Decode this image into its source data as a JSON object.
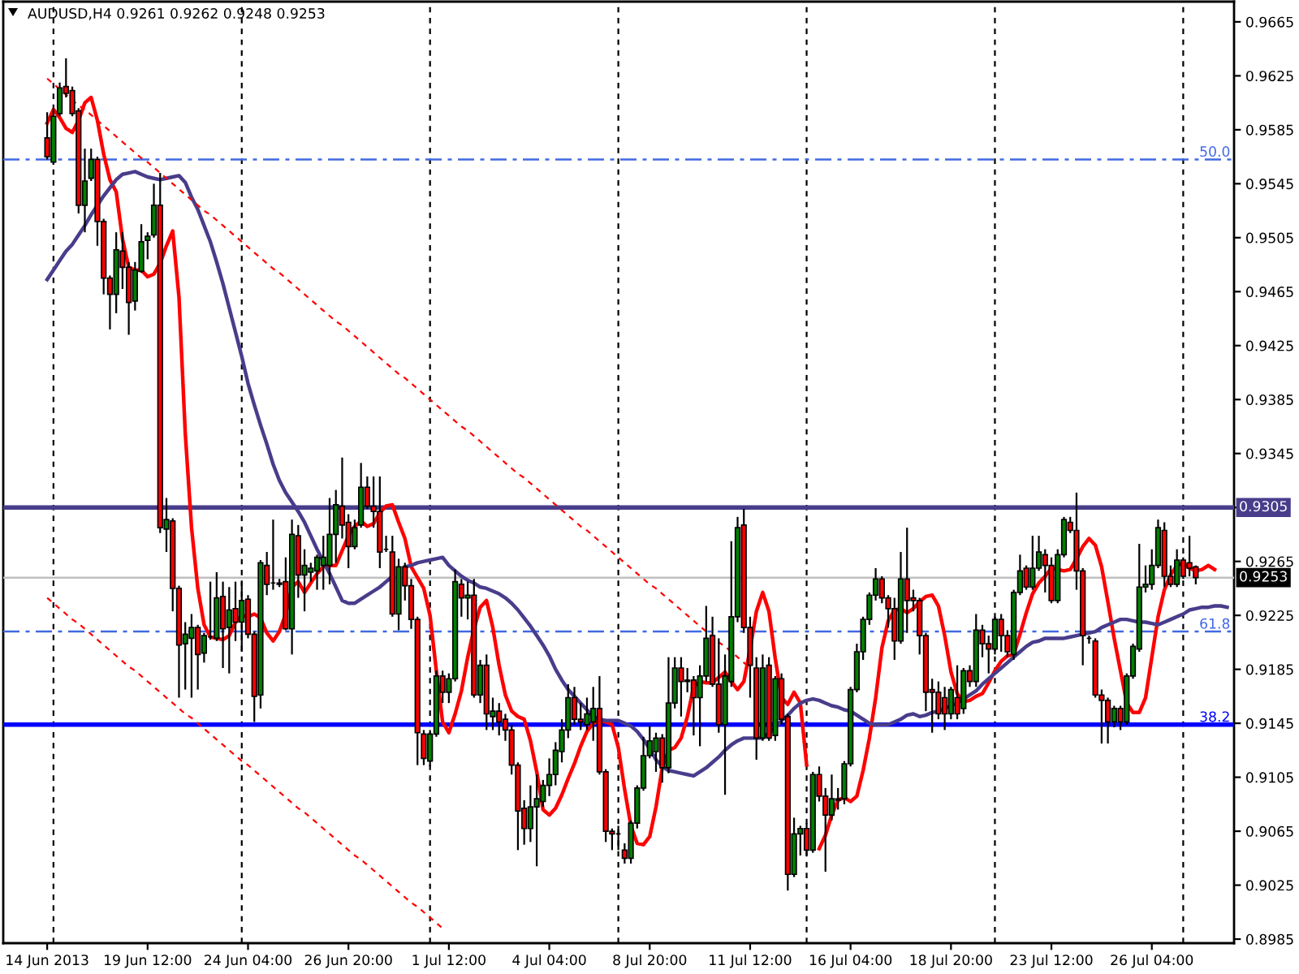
{
  "chart_data": {
    "type": "candlestick",
    "title": "AUDUSD,H4 0.9261 0.9262 0.9248 0.9253",
    "categories": [
      "14 Jun 2013",
      null,
      null,
      null,
      null,
      null,
      null,
      null,
      null,
      null,
      null,
      null,
      null,
      null,
      null,
      null,
      "19 Jun 12:00",
      null,
      null,
      null,
      null,
      null,
      null,
      null,
      null,
      null,
      null,
      null,
      null,
      null,
      null,
      null,
      "24 Jun 04:00",
      null,
      null,
      null,
      null,
      null,
      null,
      null,
      null,
      null,
      null,
      null,
      null,
      null,
      null,
      null,
      "26 Jun 20:00",
      null,
      null,
      null,
      null,
      null,
      null,
      null,
      null,
      null,
      null,
      null,
      null,
      null,
      null,
      null,
      "1 Jul 12:00",
      null,
      null,
      null,
      null,
      null,
      null,
      null,
      null,
      null,
      null,
      null,
      null,
      null,
      null,
      null,
      "4 Jul 04:00",
      null,
      null,
      null,
      null,
      null,
      null,
      null,
      null,
      null,
      null,
      null,
      null,
      null,
      null,
      null,
      "8 Jul 20:00",
      null,
      null,
      null,
      null,
      null,
      null,
      null,
      null,
      null,
      null,
      null,
      null,
      null,
      null,
      null,
      "11 Jul 12:00",
      null,
      null,
      null,
      null,
      null,
      null,
      null,
      null,
      null,
      null,
      null,
      null,
      null,
      null,
      null,
      "16 Jul 04:00",
      null,
      null,
      null,
      null,
      null,
      null,
      null,
      null,
      null,
      null,
      null,
      null,
      null,
      null,
      null,
      "18 Jul 20:00",
      null,
      null,
      null,
      null,
      null,
      null,
      null,
      null,
      null,
      null,
      null,
      null,
      null,
      null,
      null,
      "23 Jul 12:00",
      null,
      null,
      null,
      null,
      null,
      null,
      null,
      null,
      null,
      null,
      null,
      null,
      null,
      null,
      null,
      "26 Jul 04:00",
      null,
      null,
      null,
      null,
      null,
      null,
      null,
      null,
      null,
      null,
      null,
      null
    ],
    "ohlc": [
      [
        0.9579,
        0.9598,
        0.9563,
        0.9565
      ],
      [
        0.9561,
        0.9601,
        0.9559,
        0.9595
      ],
      [
        0.9597,
        0.962,
        0.9595,
        0.9616
      ],
      [
        0.9617,
        0.9638,
        0.9609,
        0.9612
      ],
      [
        0.9614,
        0.9617,
        0.9595,
        0.9597
      ],
      [
        0.9599,
        0.9601,
        0.9523,
        0.9529
      ],
      [
        0.9529,
        0.9571,
        0.9509,
        0.9547
      ],
      [
        0.9549,
        0.9571,
        0.9547,
        0.9563
      ],
      [
        0.9563,
        0.9565,
        0.9499,
        0.9517
      ],
      [
        0.9517,
        0.9519,
        0.9463,
        0.9475
      ],
      [
        0.9475,
        0.9477,
        0.9437,
        0.9463
      ],
      [
        0.9463,
        0.9509,
        0.9449,
        0.9496
      ],
      [
        0.9495,
        0.9509,
        0.9467,
        0.9483
      ],
      [
        0.9483,
        0.9487,
        0.9433,
        0.9457
      ],
      [
        0.9458,
        0.9487,
        0.9451,
        0.9481
      ],
      [
        0.948,
        0.9515,
        0.9479,
        0.9502
      ],
      [
        0.9503,
        0.9509,
        0.9489,
        0.9506
      ],
      [
        0.9507,
        0.9545,
        0.9505,
        0.9529
      ],
      [
        0.9529,
        0.9553,
        0.9286,
        0.929
      ],
      [
        0.9289,
        0.9312,
        0.9272,
        0.9296
      ],
      [
        0.9295,
        0.9297,
        0.9228,
        0.9245
      ],
      [
        0.9245,
        0.9247,
        0.9164,
        0.9203
      ],
      [
        0.9204,
        0.922,
        0.917,
        0.9211
      ],
      [
        0.9208,
        0.9226,
        0.9164,
        0.9216
      ],
      [
        0.9216,
        0.9218,
        0.917,
        0.9196
      ],
      [
        0.9197,
        0.9212,
        0.919,
        0.921
      ],
      [
        0.9209,
        0.925,
        0.9207,
        0.9209
      ],
      [
        0.9208,
        0.9257,
        0.9206,
        0.9238
      ],
      [
        0.9239,
        0.925,
        0.9186,
        0.9215
      ],
      [
        0.9216,
        0.9246,
        0.9182,
        0.9229
      ],
      [
        0.923,
        0.925,
        0.9206,
        0.922
      ],
      [
        0.922,
        0.925,
        0.9198,
        0.9236
      ],
      [
        0.9237,
        0.924,
        0.9208,
        0.9211
      ],
      [
        0.9211,
        0.9213,
        0.9146,
        0.9165
      ],
      [
        0.9166,
        0.9266,
        0.9156,
        0.9264
      ],
      [
        0.9262,
        0.9272,
        0.924,
        0.9248
      ],
      [
        0.9249,
        0.9296,
        0.9244,
        0.9249
      ],
      [
        0.9249,
        0.9252,
        0.9246,
        0.9248
      ],
      [
        0.925,
        0.9268,
        0.9214,
        0.9215
      ],
      [
        0.9215,
        0.9296,
        0.9196,
        0.9285
      ],
      [
        0.9284,
        0.9292,
        0.9238,
        0.9255
      ],
      [
        0.9255,
        0.9274,
        0.9228,
        0.9262
      ],
      [
        0.9257,
        0.9264,
        0.925,
        0.926
      ],
      [
        0.9258,
        0.927,
        0.9244,
        0.9268
      ],
      [
        0.9262,
        0.9284,
        0.9244,
        0.9268
      ],
      [
        0.9262,
        0.9312,
        0.9248,
        0.9285
      ],
      [
        0.9285,
        0.9318,
        0.9264,
        0.9307
      ],
      [
        0.9306,
        0.9342,
        0.9282,
        0.9292
      ],
      [
        0.9294,
        0.93,
        0.926,
        0.9276
      ],
      [
        0.9276,
        0.9296,
        0.9274,
        0.929
      ],
      [
        0.9292,
        0.9338,
        0.929,
        0.932
      ],
      [
        0.932,
        0.9328,
        0.9304,
        0.9306
      ],
      [
        0.9306,
        0.9328,
        0.929,
        0.9302
      ],
      [
        0.9302,
        0.9328,
        0.926,
        0.9272
      ],
      [
        0.9274,
        0.9284,
        0.9272,
        0.9274
      ],
      [
        0.9272,
        0.9284,
        0.9224,
        0.9226
      ],
      [
        0.9226,
        0.9267,
        0.9214,
        0.9261
      ],
      [
        0.9261,
        0.9264,
        0.9236,
        0.9247
      ],
      [
        0.9247,
        0.9252,
        0.9215,
        0.9222
      ],
      [
        0.9222,
        0.9224,
        0.9114,
        0.9138
      ],
      [
        0.9137,
        0.914,
        0.9114,
        0.9119
      ],
      [
        0.9117,
        0.914,
        0.9113,
        0.9137
      ],
      [
        0.9137,
        0.9184,
        0.9135,
        0.918
      ],
      [
        0.918,
        0.9184,
        0.916,
        0.9168
      ],
      [
        0.9168,
        0.9182,
        0.916,
        0.9178
      ],
      [
        0.9178,
        0.9259,
        0.9176,
        0.925
      ],
      [
        0.9248,
        0.9252,
        0.9224,
        0.9238
      ],
      [
        0.9238,
        0.925,
        0.9222,
        0.924
      ],
      [
        0.924,
        0.9252,
        0.9164,
        0.9166
      ],
      [
        0.9166,
        0.9192,
        0.916,
        0.9188
      ],
      [
        0.9188,
        0.9196,
        0.914,
        0.9152
      ],
      [
        0.915,
        0.9164,
        0.914,
        0.9154
      ],
      [
        0.9154,
        0.916,
        0.9136,
        0.9146
      ],
      [
        0.9148,
        0.9152,
        0.9132,
        0.914
      ],
      [
        0.914,
        0.9144,
        0.9107,
        0.9114
      ],
      [
        0.9114,
        0.9116,
        0.9051,
        0.908
      ],
      [
        0.9082,
        0.9088,
        0.9055,
        0.9067
      ],
      [
        0.9067,
        0.9099,
        0.9057,
        0.9083
      ],
      [
        0.9083,
        0.9107,
        0.9039,
        0.9089
      ],
      [
        0.9087,
        0.9103,
        0.9083,
        0.9099
      ],
      [
        0.9099,
        0.9119,
        0.9091,
        0.9107
      ],
      [
        0.9107,
        0.9131,
        0.9099,
        0.9125
      ],
      [
        0.9124,
        0.9148,
        0.9116,
        0.914
      ],
      [
        0.914,
        0.9174,
        0.9134,
        0.9164
      ],
      [
        0.9164,
        0.9172,
        0.9144,
        0.9148
      ],
      [
        0.9148,
        0.916,
        0.914,
        0.9146
      ],
      [
        0.9144,
        0.9164,
        0.914,
        0.9152
      ],
      [
        0.9146,
        0.9172,
        0.9132,
        0.9156
      ],
      [
        0.9156,
        0.918,
        0.9107,
        0.9109
      ],
      [
        0.9109,
        0.9111,
        0.9057,
        0.9065
      ],
      [
        0.9065,
        0.9067,
        0.9051,
        0.9063
      ],
      [
        0.9063,
        0.9069,
        0.9051,
        0.9063
      ],
      [
        0.9051,
        0.9056,
        0.9041,
        0.9045
      ],
      [
        0.9045,
        0.9073,
        0.9041,
        0.9071
      ],
      [
        0.9071,
        0.9099,
        0.9067,
        0.9097
      ],
      [
        0.9097,
        0.9135,
        0.9095,
        0.9121
      ],
      [
        0.9121,
        0.9143,
        0.9119,
        0.9132
      ],
      [
        0.9124,
        0.9138,
        0.9109,
        0.9134
      ],
      [
        0.9134,
        0.9137,
        0.9101,
        0.9112
      ],
      [
        0.9112,
        0.9194,
        0.9108,
        0.916
      ],
      [
        0.916,
        0.9194,
        0.9156,
        0.9186
      ],
      [
        0.9186,
        0.9194,
        0.915,
        0.9176
      ],
      [
        0.9176,
        0.9186,
        0.9168,
        0.9177
      ],
      [
        0.9177,
        0.918,
        0.9136,
        0.9164
      ],
      [
        0.9164,
        0.9188,
        0.9128,
        0.918
      ],
      [
        0.918,
        0.9232,
        0.9176,
        0.9208
      ],
      [
        0.921,
        0.9224,
        0.9172,
        0.9174
      ],
      [
        0.9174,
        0.9208,
        0.9138,
        0.9144
      ],
      [
        0.9144,
        0.9196,
        0.9092,
        0.918
      ],
      [
        0.9176,
        0.928,
        0.9172,
        0.9224
      ],
      [
        0.9224,
        0.9298,
        0.922,
        0.929
      ],
      [
        0.9292,
        0.9304,
        0.9212,
        0.9216
      ],
      [
        0.9216,
        0.9224,
        0.9164,
        0.9188
      ],
      [
        0.9186,
        0.9194,
        0.9118,
        0.9134
      ],
      [
        0.9134,
        0.9196,
        0.9132,
        0.9186
      ],
      [
        0.9188,
        0.9194,
        0.9132,
        0.9134
      ],
      [
        0.9136,
        0.918,
        0.9132,
        0.9178
      ],
      [
        0.9178,
        0.9182,
        0.9144,
        0.9148
      ],
      [
        0.915,
        0.9152,
        0.9021,
        0.9033
      ],
      [
        0.9033,
        0.9075,
        0.9031,
        0.9063
      ],
      [
        0.9063,
        0.9069,
        0.9047,
        0.9067
      ],
      [
        0.9067,
        0.9071,
        0.9047,
        0.9051
      ],
      [
        0.9051,
        0.9109,
        0.9049,
        0.9107
      ],
      [
        0.9107,
        0.9113,
        0.9087,
        0.9091
      ],
      [
        0.9091,
        0.9097,
        0.9035,
        0.9077
      ],
      [
        0.9077,
        0.9107,
        0.9073,
        0.9089
      ],
      [
        0.9089,
        0.9097,
        0.9081,
        0.9088
      ],
      [
        0.9089,
        0.9117,
        0.9085,
        0.9115
      ],
      [
        0.9115,
        0.9172,
        0.9113,
        0.917
      ],
      [
        0.917,
        0.9204,
        0.9168,
        0.9198
      ],
      [
        0.9198,
        0.9224,
        0.9192,
        0.9222
      ],
      [
        0.9222,
        0.9242,
        0.9218,
        0.924
      ],
      [
        0.924,
        0.926,
        0.9236,
        0.9252
      ],
      [
        0.9252,
        0.9254,
        0.9234,
        0.9238
      ],
      [
        0.9238,
        0.924,
        0.9216,
        0.923
      ],
      [
        0.923,
        0.9238,
        0.9192,
        0.9206
      ],
      [
        0.9206,
        0.9272,
        0.9204,
        0.9252
      ],
      [
        0.9252,
        0.929,
        0.9212,
        0.9236
      ],
      [
        0.9238,
        0.9244,
        0.9228,
        0.9236
      ],
      [
        0.9236,
        0.9238,
        0.9196,
        0.921
      ],
      [
        0.921,
        0.9212,
        0.9154,
        0.9168
      ],
      [
        0.917,
        0.9178,
        0.9138,
        0.9168
      ],
      [
        0.9168,
        0.9176,
        0.9148,
        0.9152
      ],
      [
        0.9164,
        0.9172,
        0.914,
        0.9152
      ],
      [
        0.9152,
        0.9172,
        0.9148,
        0.917
      ],
      [
        0.9164,
        0.9188,
        0.9148,
        0.9152
      ],
      [
        0.9156,
        0.9186,
        0.9152,
        0.9184
      ],
      [
        0.9184,
        0.9188,
        0.9172,
        0.9176
      ],
      [
        0.9176,
        0.9226,
        0.9172,
        0.9214
      ],
      [
        0.9214,
        0.9218,
        0.9194,
        0.9204
      ],
      [
        0.9204,
        0.921,
        0.9182,
        0.92
      ],
      [
        0.92,
        0.9224,
        0.9196,
        0.9222
      ],
      [
        0.9222,
        0.9226,
        0.9198,
        0.921
      ],
      [
        0.921,
        0.9214,
        0.9194,
        0.9198
      ],
      [
        0.9196,
        0.9244,
        0.9192,
        0.9242
      ],
      [
        0.9242,
        0.927,
        0.924,
        0.9258
      ],
      [
        0.926,
        0.9262,
        0.9244,
        0.9246
      ],
      [
        0.9246,
        0.9284,
        0.9244,
        0.926
      ],
      [
        0.926,
        0.9284,
        0.9258,
        0.9272
      ],
      [
        0.927,
        0.9274,
        0.9242,
        0.9262
      ],
      [
        0.9262,
        0.9268,
        0.9234,
        0.9236
      ],
      [
        0.9236,
        0.9274,
        0.9234,
        0.927
      ],
      [
        0.927,
        0.9298,
        0.9268,
        0.9296
      ],
      [
        0.9294,
        0.9298,
        0.9286,
        0.9288
      ],
      [
        0.9288,
        0.9316,
        0.9244,
        0.9258
      ],
      [
        0.9258,
        0.926,
        0.9188,
        0.921
      ],
      [
        0.9208,
        0.921,
        0.9204,
        0.9208
      ],
      [
        0.9206,
        0.9208,
        0.9164,
        0.9166
      ],
      [
        0.9166,
        0.917,
        0.913,
        0.9162
      ],
      [
        0.9162,
        0.9164,
        0.913,
        0.9146
      ],
      [
        0.9146,
        0.9158,
        0.9142,
        0.9156
      ],
      [
        0.9156,
        0.9158,
        0.914,
        0.9146
      ],
      [
        0.9146,
        0.9182,
        0.9144,
        0.918
      ],
      [
        0.918,
        0.9204,
        0.9178,
        0.9202
      ],
      [
        0.92,
        0.9278,
        0.9198,
        0.9246
      ],
      [
        0.9246,
        0.9262,
        0.9242,
        0.9248
      ],
      [
        0.9248,
        0.9274,
        0.9244,
        0.9262
      ],
      [
        0.9262,
        0.9296,
        0.926,
        0.929
      ],
      [
        0.9288,
        0.9294,
        0.9246,
        0.9254
      ],
      [
        0.9254,
        0.9262,
        0.9246,
        0.9248
      ],
      [
        0.9248,
        0.9274,
        0.9246,
        0.9266
      ],
      [
        0.9266,
        0.9268,
        0.9252,
        0.9254
      ],
      [
        0.9264,
        0.9284,
        0.9254,
        0.926
      ],
      [
        0.9261,
        0.9262,
        0.9248,
        0.9253
      ],
      null,
      null,
      null,
      null,
      null
    ],
    "colors": [
      "#ff0000",
      "#008000",
      "#008000",
      "#ff0000",
      "#ff0000",
      "#ff0000",
      "#008000",
      "#008000",
      "#ff0000",
      "#ff0000",
      "#ff0000",
      "#008000",
      "#ff0000",
      "#ff0000",
      "#008000",
      "#008000",
      "#008000",
      "#008000",
      "#ff0000",
      "#008000",
      "#ff0000",
      "#ff0000",
      "#008000",
      "#008000",
      "#ff0000",
      "#008000",
      "#000000",
      "#008000",
      "#ff0000",
      "#008000",
      "#ff0000",
      "#008000",
      "#ff0000",
      "#ff0000",
      "#008000",
      "#ff0000",
      "#000000",
      "#ff0000",
      "#ff0000",
      "#008000",
      "#ff0000",
      "#008000",
      "#008000",
      "#008000",
      "#008000",
      "#008000",
      "#008000",
      "#ff0000",
      "#ff0000",
      "#008000",
      "#008000",
      "#ff0000",
      "#ff0000",
      "#ff0000",
      "#000000",
      "#ff0000",
      "#008000",
      "#ff0000",
      "#ff0000",
      "#ff0000",
      "#ff0000",
      "#008000",
      "#008000",
      "#ff0000",
      "#008000",
      "#008000",
      "#ff0000",
      "#008000",
      "#ff0000",
      "#008000",
      "#ff0000",
      "#008000",
      "#ff0000",
      "#ff0000",
      "#ff0000",
      "#ff0000",
      "#ff0000",
      "#008000",
      "#008000",
      "#008000",
      "#008000",
      "#008000",
      "#008000",
      "#008000",
      "#ff0000",
      "#ff0000",
      "#008000",
      "#008000",
      "#ff0000",
      "#ff0000",
      "#ff0000",
      "#000000",
      "#ff0000",
      "#008000",
      "#008000",
      "#008000",
      "#008000",
      "#008000",
      "#ff0000",
      "#008000",
      "#008000",
      "#ff0000",
      "#008000",
      "#ff0000",
      "#008000",
      "#008000",
      "#ff0000",
      "#ff0000",
      "#008000",
      "#008000",
      "#008000",
      "#ff0000",
      "#ff0000",
      "#ff0000",
      "#008000",
      "#ff0000",
      "#008000",
      "#ff0000",
      "#ff0000",
      "#008000",
      "#008000",
      "#ff0000",
      "#008000",
      "#ff0000",
      "#ff0000",
      "#008000",
      "#ff0000",
      "#008000",
      "#008000",
      "#008000",
      "#008000",
      "#008000",
      "#008000",
      "#ff0000",
      "#ff0000",
      "#ff0000",
      "#008000",
      "#ff0000",
      "#ff0000",
      "#ff0000",
      "#ff0000",
      "#ff0000",
      "#ff0000",
      "#ff0000",
      "#008000",
      "#ff0000",
      "#008000",
      "#ff0000",
      "#008000",
      "#ff0000",
      "#ff0000",
      "#008000",
      "#ff0000",
      "#ff0000",
      "#008000",
      "#008000",
      "#ff0000",
      "#008000",
      "#008000",
      "#ff0000",
      "#ff0000",
      "#008000",
      "#008000",
      "#ff0000",
      "#ff0000",
      "#ff0000",
      "#000000",
      "#ff0000",
      "#ff0000",
      "#ff0000",
      "#008000",
      "#ff0000",
      "#008000",
      "#008000",
      "#008000",
      "#008000",
      "#008000",
      "#008000",
      "#ff0000",
      "#ff0000",
      "#008000",
      "#ff0000",
      "#ff0000",
      "#ff0000",
      null,
      null,
      null,
      null,
      null
    ],
    "series": [
      {
        "type": "line",
        "color": "#ff0000",
        "line_style": "solid",
        "values": [
          0.959,
          0.96,
          0.9594,
          0.9586,
          0.9583,
          0.9592,
          0.9605,
          0.9609,
          0.9592,
          0.9567,
          0.9548,
          0.9539,
          0.9504,
          0.9483,
          0.9481,
          0.9481,
          0.9476,
          0.9478,
          0.9486,
          0.9499,
          0.951,
          0.9461,
          0.936,
          0.929,
          0.9245,
          0.9218,
          0.9209,
          0.9208,
          0.9207,
          0.921,
          0.922,
          0.9225,
          0.9224,
          0.9226,
          0.9223,
          0.9212,
          0.9206,
          0.9213,
          0.9226,
          0.9246,
          0.925,
          0.9242,
          0.9249,
          0.9256,
          0.9261,
          0.9262,
          0.9262,
          0.9273,
          0.9284,
          0.9291,
          0.9295,
          0.9291,
          0.9293,
          0.9301,
          0.9306,
          0.9307,
          0.9294,
          0.9282,
          0.9261,
          0.9253,
          0.9245,
          0.9225,
          0.9184,
          0.9146,
          0.9138,
          0.9152,
          0.9169,
          0.9194,
          0.9215,
          0.9231,
          0.9236,
          0.9216,
          0.9188,
          0.9166,
          0.9154,
          0.915,
          0.9148,
          0.9132,
          0.9109,
          0.9081,
          0.9077,
          0.9082,
          0.9092,
          0.9104,
          0.9115,
          0.9128,
          0.9139,
          0.9145,
          0.9147,
          0.9146,
          0.9144,
          0.9127,
          0.9096,
          0.9069,
          0.9056,
          0.9055,
          0.9061,
          0.9083,
          0.9112,
          0.9125,
          0.9127,
          0.9134,
          0.915,
          0.9172,
          0.9176,
          0.9175,
          0.9175,
          0.9179,
          0.9183,
          0.9176,
          0.917,
          0.9176,
          0.92,
          0.9228,
          0.9242,
          0.9228,
          0.9193,
          0.9164,
          0.9159,
          0.9168,
          0.916,
          0.9114,
          null,
          0.9052,
          0.9062,
          0.9077,
          0.9088,
          0.909,
          0.9087,
          0.9091,
          0.911,
          0.9134,
          0.9164,
          0.9201,
          0.9221,
          0.9229,
          0.923,
          0.9227,
          0.923,
          0.9235,
          0.9239,
          0.924,
          0.9232,
          0.921,
          0.9183,
          0.9167,
          0.9161,
          0.9162,
          0.9165,
          0.9167,
          0.9175,
          0.9184,
          0.9191,
          0.9195,
          0.9196,
          0.9211,
          0.9227,
          0.9241,
          0.9249,
          0.9254,
          0.926,
          0.9259,
          0.9258,
          0.9259,
          0.9267,
          0.9276,
          0.9282,
          0.9277,
          0.9261,
          0.9235,
          0.9208,
          0.9184,
          0.916,
          0.9153,
          0.9153,
          0.9164,
          0.9194,
          0.9224,
          0.9244,
          0.9255,
          0.9262,
          0.9264,
          0.926,
          0.9258,
          0.9259,
          0.9262,
          0.9259,
          null,
          null
        ]
      },
      {
        "type": "line",
        "color": "#483d8b",
        "line_style": "solid",
        "values": [
          0.9474,
          0.9481,
          0.9488,
          0.9495,
          0.95,
          0.9507,
          0.9514,
          0.9522,
          0.9529,
          0.9536,
          0.9542,
          0.9548,
          0.9552,
          0.9553,
          0.9554,
          0.9552,
          0.955,
          0.9549,
          0.9548,
          0.9549,
          0.955,
          0.9551,
          0.9546,
          0.9535,
          0.9526,
          0.9514,
          0.9502,
          0.9487,
          0.9471,
          0.9453,
          0.9435,
          0.9417,
          0.9397,
          0.9381,
          0.9366,
          0.9352,
          0.9337,
          0.9325,
          0.9316,
          0.9309,
          0.9302,
          0.9294,
          0.9284,
          0.9274,
          0.9265,
          0.9256,
          0.9246,
          0.9236,
          0.9234,
          0.9234,
          0.9237,
          0.924,
          0.9243,
          0.9246,
          0.925,
          0.9254,
          null,
          0.9261,
          0.9262,
          0.9264,
          0.9265,
          0.9266,
          0.9267,
          0.9268,
          0.9262,
          0.9258,
          0.9254,
          0.9251,
          0.9249,
          0.9246,
          0.9245,
          0.9243,
          0.9241,
          0.9238,
          0.9234,
          0.9229,
          0.9223,
          0.9217,
          0.921,
          0.9203,
          0.9195,
          0.9185,
          0.9177,
          0.917,
          0.9165,
          0.916,
          0.9155,
          0.915,
          0.9148,
          0.9147,
          0.9147,
          0.9147,
          0.9145,
          0.9143,
          0.9139,
          0.9133,
          0.9126,
          0.9118,
          0.9113,
          0.911,
          0.9109,
          0.9108,
          0.9107,
          0.9106,
          0.9109,
          0.9112,
          0.9116,
          0.912,
          0.9125,
          0.9129,
          0.9132,
          0.9134,
          0.9134,
          0.9134,
          0.9134,
          0.9138,
          0.9142,
          0.9147,
          0.9151,
          0.9156,
          0.916,
          0.9162,
          0.9163,
          0.9162,
          0.916,
          0.9158,
          0.9157,
          0.9155,
          0.9154,
          0.9151,
          0.9148,
          0.9145,
          0.9144,
          0.9144,
          0.9144,
          0.9146,
          0.9148,
          0.9151,
          0.9152,
          0.915,
          0.9151,
          0.9153,
          0.9154,
          0.9156,
          0.9158,
          0.916,
          0.9163,
          0.9166,
          0.9169,
          0.9174,
          0.9178,
          0.9182,
          0.9186,
          0.919,
          0.9194,
          0.9198,
          0.9202,
          0.9205,
          0.9206,
          0.9208,
          0.9208,
          0.9208,
          0.9208,
          0.9209,
          0.921,
          0.9211,
          0.9212,
          0.9213,
          0.9216,
          0.9218,
          0.922,
          0.9222,
          0.9222,
          0.9221,
          0.922,
          0.922,
          0.9219,
          0.9218,
          0.922,
          0.9222,
          0.9224,
          0.9226,
          0.9229,
          0.923,
          0.9231,
          0.9231,
          0.9232,
          0.9232,
          0.9231
        ]
      },
      {
        "type": "line",
        "color": "#ff0000",
        "line_style": "dashed",
        "values": [
          0.9623,
          0.9619,
          0.9615,
          0.9611,
          0.9607,
          0.9603,
          0.96,
          0.9596,
          0.9592,
          0.9588,
          0.9584,
          0.958,
          0.9576,
          0.9572,
          0.9568,
          0.9564,
          0.9561,
          0.9557,
          0.9553,
          0.9549,
          0.9545,
          0.9541,
          0.9537,
          0.9533,
          0.9529,
          0.9525,
          0.9522,
          0.9518,
          0.9514,
          0.951,
          0.9506,
          0.9502,
          0.9498,
          0.9494,
          0.949,
          0.9486,
          0.9482,
          0.9479,
          0.9475,
          0.9471,
          0.9467,
          0.9463,
          0.9459,
          0.9455,
          0.9451,
          0.9447,
          0.9443,
          0.944,
          0.9436,
          0.9432,
          0.9428,
          0.9424,
          0.942,
          0.9416,
          0.9412,
          0.9408,
          0.9404,
          0.9401,
          0.9397,
          0.9393,
          0.9389,
          0.9385,
          0.9381,
          0.9377,
          0.9373,
          0.9369,
          0.9365,
          0.9362,
          0.9358,
          0.9354,
          0.935,
          0.9346,
          0.9342,
          0.9338,
          0.9334,
          0.933,
          0.9327,
          0.9323,
          0.9319,
          0.9315,
          0.9311,
          0.9307,
          0.9303,
          0.9299,
          0.9295,
          0.9291,
          0.9288,
          0.9284,
          0.928,
          0.9276,
          0.9272,
          0.9268,
          0.9264,
          0.926,
          0.9256,
          0.9252,
          0.9248,
          0.9245,
          0.9241,
          0.9237,
          0.9233,
          0.9229,
          0.9225,
          0.9221,
          0.9217,
          0.9213,
          0.9209,
          0.9205,
          0.9202,
          0.9198,
          0.9194,
          0.919,
          0.9186,
          null,
          null,
          null,
          null,
          null,
          null,
          null,
          null,
          null,
          null,
          null,
          null,
          null,
          null,
          null,
          null,
          null,
          null,
          null,
          null,
          null,
          null,
          null,
          null,
          null,
          null,
          null,
          null,
          null,
          null,
          null,
          null,
          null,
          null,
          null,
          null,
          null,
          null,
          null,
          null,
          null,
          null,
          null,
          null,
          null,
          null,
          null,
          null,
          null,
          null,
          null,
          null,
          null,
          null,
          null,
          null,
          null,
          null,
          null,
          null,
          null,
          null,
          null,
          null,
          null,
          null,
          null,
          null,
          null,
          null,
          null,
          null,
          null,
          null,
          null,
          null
        ]
      },
      {
        "type": "line",
        "color": "#ff0000",
        "line_style": "dashed",
        "values": [
          0.9238,
          0.9234,
          0.923,
          0.9226,
          0.9222,
          0.9219,
          0.9215,
          0.9211,
          0.9207,
          0.9203,
          0.9199,
          0.9195,
          0.9191,
          0.9187,
          0.9184,
          0.918,
          0.9176,
          0.9172,
          0.9168,
          0.9164,
          0.916,
          0.9156,
          0.9152,
          0.9149,
          0.9145,
          0.9141,
          0.9137,
          0.9133,
          0.9129,
          0.9125,
          0.9121,
          0.9117,
          0.9114,
          0.911,
          0.9106,
          0.9102,
          0.9098,
          0.9094,
          0.909,
          0.9086,
          0.9082,
          0.9079,
          0.9075,
          0.9071,
          0.9067,
          0.9063,
          0.9059,
          0.9055,
          0.9051,
          0.9047,
          0.9044,
          0.904,
          0.9036,
          0.9032,
          0.9028,
          0.9024,
          0.902,
          0.9016,
          0.9012,
          0.9009,
          0.9005,
          0.9001,
          0.8997,
          0.8993,
          null,
          null,
          null,
          null,
          null,
          null,
          null,
          null,
          null,
          null,
          null,
          null,
          null,
          null,
          null,
          null,
          null,
          null,
          null,
          null,
          null,
          null,
          null,
          null,
          null,
          null,
          null,
          null,
          null,
          null,
          null,
          null,
          null,
          null,
          null,
          null,
          null,
          null,
          null,
          null,
          null,
          null,
          null,
          null,
          null,
          null,
          null,
          null,
          null,
          null,
          null,
          null,
          null,
          null,
          null,
          null,
          null,
          null,
          null,
          null,
          null,
          null,
          null,
          null,
          null,
          null,
          null,
          null,
          null,
          null,
          null,
          null,
          null,
          null,
          null,
          null,
          null,
          null,
          null,
          null,
          null,
          null,
          null,
          null,
          null,
          null,
          null,
          null,
          null,
          null,
          null,
          null,
          null,
          null,
          null,
          null,
          null,
          null,
          null,
          null,
          null,
          null,
          null,
          null,
          null,
          null,
          null,
          null,
          null,
          null,
          null,
          null,
          null,
          null,
          null,
          null,
          null,
          null,
          null,
          null,
          null,
          null,
          null,
          null,
          null
        ]
      }
    ],
    "ref_lines": [
      {
        "axis": "y",
        "value": 0.9563,
        "color": "#4169e1",
        "line_style": "dashdot"
      },
      {
        "axis": "y",
        "value": 0.9305,
        "label": "0.9305",
        "color": "#483d8b",
        "line_style": "solid"
      },
      {
        "axis": "y",
        "value": 0.9253,
        "label": "0.9253",
        "color": "#c0c0c0",
        "line_style": "solid"
      },
      {
        "axis": "y",
        "value": 0.9213,
        "color": "#4169e1",
        "line_style": "dashdot"
      },
      {
        "axis": "y",
        "value": 0.9144,
        "color": "#0000ff",
        "line_style": "solid"
      }
    ],
    "annotations": [
      {
        "text": "50.0",
        "y": 0.9563
      },
      {
        "text": "61.8",
        "y": 0.9213
      },
      {
        "text": "38.2",
        "y": 0.9144
      }
    ],
    "ylim": [
      0.8982,
      0.968
    ],
    "yticks": [
      0.8985,
      0.9025,
      0.9065,
      0.9105,
      0.9145,
      0.9185,
      0.9225,
      0.9265,
      {
        "value": 0.9305,
        "label": null
      },
      0.9345,
      0.9385,
      0.9425,
      0.9465,
      0.9505,
      0.9545,
      0.9585,
      0.9625,
      0.9665
    ]
  }
}
